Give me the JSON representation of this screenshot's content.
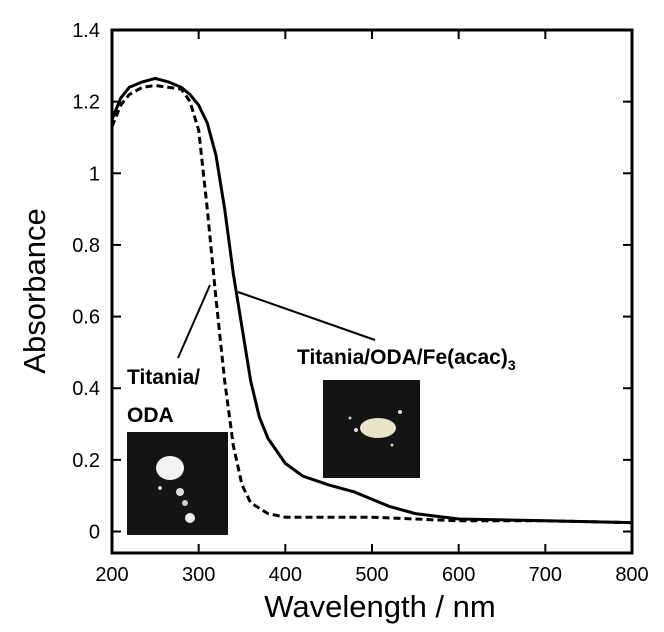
{
  "chart_data": {
    "type": "line",
    "x_label": "Wavelength / nm",
    "y_label": "Absorbance",
    "xlim": [
      200,
      800
    ],
    "xticks": [
      200,
      300,
      400,
      500,
      600,
      700,
      800
    ],
    "ylim": [
      -0.06,
      1.4
    ],
    "yticks": [
      0,
      0.2,
      0.4,
      0.6,
      0.8,
      1,
      1.2,
      1.4
    ],
    "series": [
      {
        "label": "Titania/ODA/Fe(acac)",
        "label_sub": "3",
        "color": "#000000",
        "dash": false,
        "x": [
          200,
          210,
          220,
          235,
          250,
          265,
          280,
          290,
          300,
          310,
          320,
          330,
          340,
          350,
          360,
          370,
          380,
          400,
          420,
          450,
          480,
          500,
          520,
          550,
          600,
          700,
          800
        ],
        "values": [
          1.15,
          1.21,
          1.24,
          1.255,
          1.265,
          1.255,
          1.24,
          1.22,
          1.19,
          1.14,
          1.05,
          0.9,
          0.72,
          0.57,
          0.42,
          0.32,
          0.26,
          0.19,
          0.155,
          0.13,
          0.11,
          0.09,
          0.07,
          0.05,
          0.035,
          0.03,
          0.025
        ]
      },
      {
        "label_lines": [
          "Titania/",
          "ODA"
        ],
        "color": "#000000",
        "dash": true,
        "x": [
          200,
          210,
          220,
          235,
          250,
          265,
          280,
          290,
          300,
          310,
          320,
          330,
          340,
          350,
          360,
          380,
          400,
          450,
          500,
          550,
          600,
          700,
          800
        ],
        "values": [
          1.13,
          1.19,
          1.22,
          1.24,
          1.245,
          1.24,
          1.235,
          1.2,
          1.12,
          0.9,
          0.65,
          0.42,
          0.24,
          0.13,
          0.08,
          0.05,
          0.04,
          0.04,
          0.04,
          0.035,
          0.03,
          0.03,
          0.025
        ]
      }
    ]
  }
}
